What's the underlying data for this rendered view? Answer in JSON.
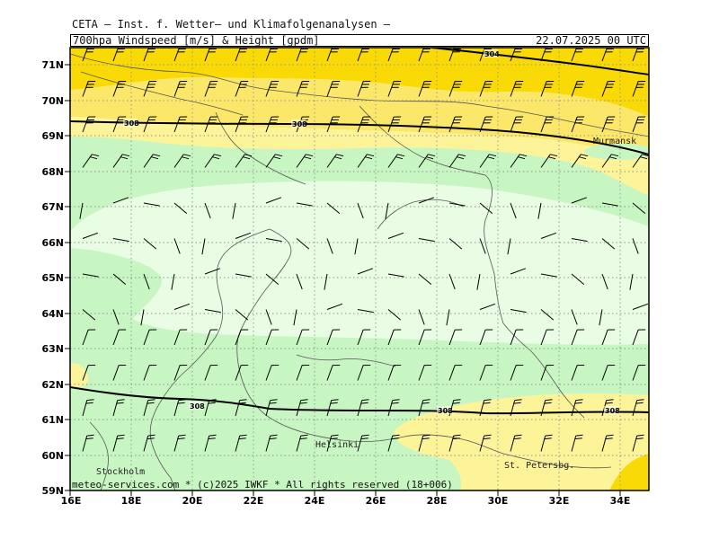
{
  "header": {
    "line1": "CETA — Inst. f. Wetter— und Klimafolgenanalysen —",
    "product": "700hpa_Windspeed_[m/s]_&_Height_[gpdm]",
    "valid_time": "22.07.2025 00 UTC"
  },
  "footer": "meteo-services.com * (c)2025 IWKF * All rights reserved (18+006)",
  "colors": {
    "band_lightest": "#e8fde3",
    "band_light_green": "#c8f6c2",
    "band_light_yellow": "#fdf49a",
    "band_yellow": "#fbe86a",
    "band_orange": "#f9da07",
    "coastline": "#555555",
    "grid": "#909090",
    "contour": "#000000"
  },
  "lat_labels": [
    "71N",
    "70N",
    "69N",
    "68N",
    "67N",
    "66N",
    "65N",
    "64N",
    "63N",
    "62N",
    "61N",
    "60N",
    "59N"
  ],
  "lon_labels": [
    "16E",
    "18E",
    "20E",
    "22E",
    "24E",
    "26E",
    "28E",
    "30E",
    "32E",
    "34E"
  ],
  "cities": [
    {
      "name": "Murmansk"
    },
    {
      "name": "Helsinki"
    },
    {
      "name": "Stockholm"
    },
    {
      "name": "St. Petersbg."
    }
  ],
  "contour_labels": [
    {
      "text": "304"
    },
    {
      "text": "308"
    },
    {
      "text": "308"
    },
    {
      "text": "308"
    },
    {
      "text": "308"
    },
    {
      "text": "308"
    }
  ]
}
